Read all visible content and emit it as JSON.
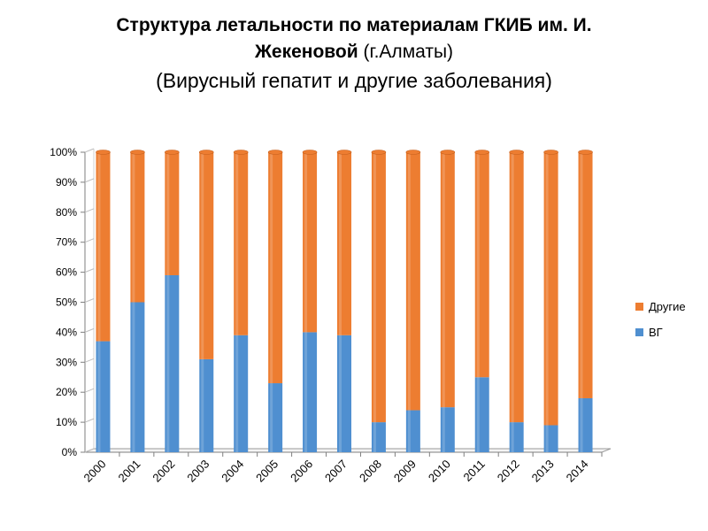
{
  "title": {
    "line1": "Структура летальности по материалам ГКИБ им. И.",
    "line2_bold": "Жекеновой",
    "line2_rest": " (г.Алматы)",
    "line3": "(Вирусный гепатит и другие заболевания)"
  },
  "legend": {
    "items": [
      {
        "label": "Другие",
        "color": "#ED7D31"
      },
      {
        "label": "ВГ",
        "color": "#4F8FD0"
      }
    ]
  },
  "chart_data": {
    "type": "bar",
    "stacked": true,
    "percent_stacked": true,
    "categories": [
      "2000",
      "2001",
      "2002",
      "2003",
      "2004",
      "2005",
      "2006",
      "2007",
      "2008",
      "2009",
      "2010",
      "2011",
      "2012",
      "2013",
      "2014"
    ],
    "series": [
      {
        "name": "ВГ",
        "color": "#4F8FD0",
        "values": [
          37,
          50,
          59,
          31,
          39,
          23,
          40,
          39,
          10,
          14,
          15,
          25,
          10,
          9,
          18
        ]
      },
      {
        "name": "Другие",
        "color": "#ED7D31",
        "values": [
          63,
          50,
          41,
          69,
          61,
          77,
          60,
          61,
          90,
          86,
          85,
          75,
          90,
          91,
          82
        ]
      }
    ],
    "y_ticks": [
      "0%",
      "10%",
      "20%",
      "30%",
      "40%",
      "50%",
      "60%",
      "70%",
      "80%",
      "90%",
      "100%"
    ],
    "ylim": [
      0,
      100
    ],
    "legend_position": "right",
    "grid": false
  }
}
